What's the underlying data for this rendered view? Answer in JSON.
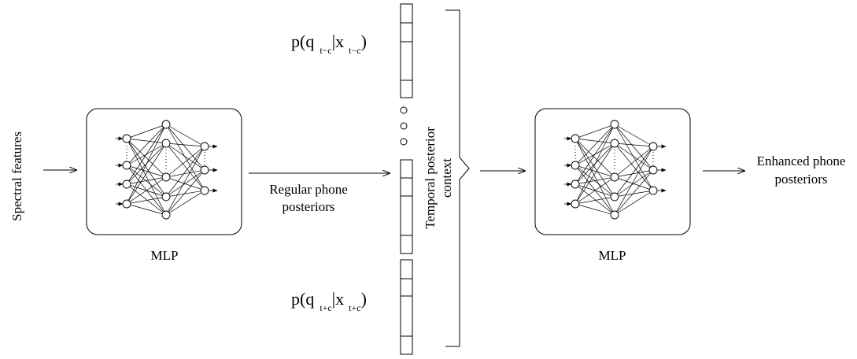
{
  "diagram": {
    "input_label": "Spectral features",
    "mlp1": {
      "label": "MLP"
    },
    "mlp2": {
      "label": "MLP"
    },
    "regular_posteriors": {
      "line1": "Regular phone",
      "line2": "posteriors"
    },
    "context": {
      "line1": "Temporal posterior",
      "line2": "context"
    },
    "output_label": {
      "line1": "Enhanced phone",
      "line2": "posteriors"
    },
    "top_formula": {
      "p": "p(q",
      "q_sub": "t−c",
      "bar_x": "|x",
      "x_sub": "t−c",
      "close": ")"
    },
    "bottom_formula": {
      "p": "p(q",
      "q_sub": "t+c",
      "bar_x": "|x",
      "x_sub": "t+c",
      "close": ")"
    }
  }
}
